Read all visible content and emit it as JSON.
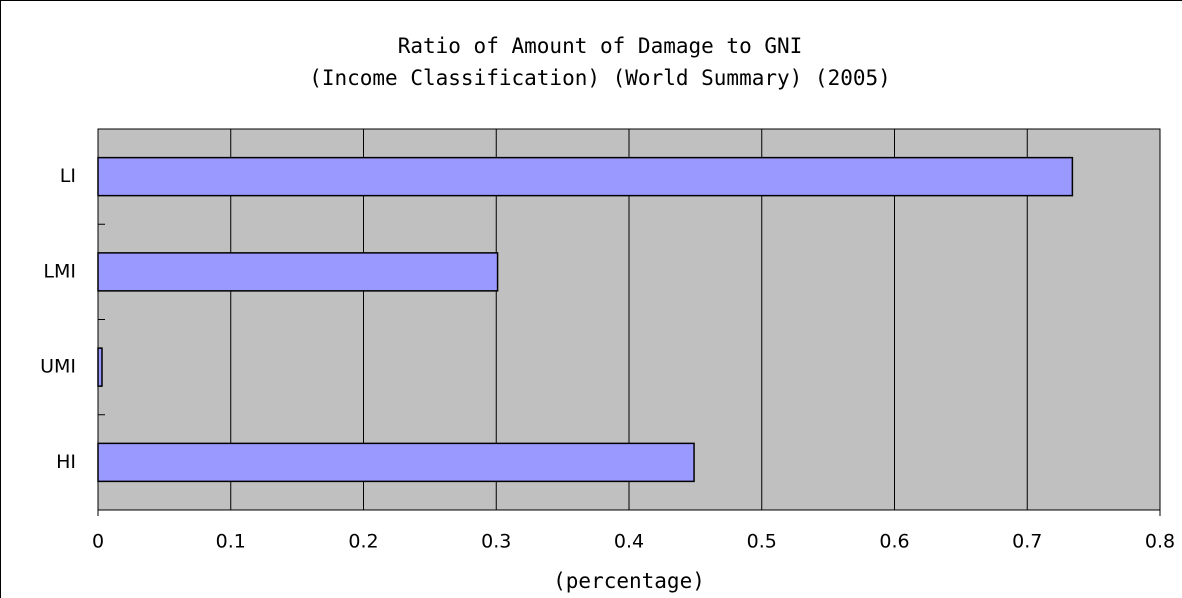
{
  "chart_data": {
    "type": "barh",
    "title": [
      "Ratio of Amount of Damage to GNI",
      "(Income Classification) (World Summary) (2005)"
    ],
    "categories": [
      "LI",
      "LMI",
      "UMI",
      "HI"
    ],
    "values": [
      0.734,
      0.301,
      0.003,
      0.449
    ],
    "color": "#9999ff",
    "xlim": [
      0,
      0.8
    ],
    "xticks": [
      0,
      0.1,
      0.2,
      0.3,
      0.4,
      0.5,
      0.6,
      0.7,
      0.8
    ],
    "x_label": "(percentage)",
    "grid": true
  }
}
